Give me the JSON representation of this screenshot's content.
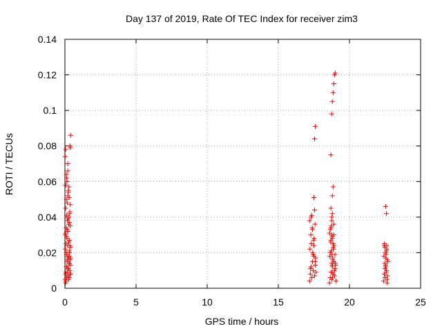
{
  "chart_data": {
    "type": "scatter",
    "title": "Day 137 of 2019, Rate Of TEC Index for receiver zim3",
    "xlabel": "GPS time / hours",
    "ylabel": "ROTI / TECUs",
    "xlim": [
      0,
      25
    ],
    "ylim": [
      0,
      0.14
    ],
    "xticks": [
      0,
      5,
      10,
      15,
      20,
      25
    ],
    "xtick_labels": [
      "0",
      "5",
      "10",
      "15",
      "20",
      "25"
    ],
    "yticks": [
      0,
      0.02,
      0.04,
      0.06,
      0.08,
      0.1,
      0.12,
      0.14
    ],
    "ytick_labels": [
      "0",
      "0.02",
      "0.04",
      "0.06",
      "0.08",
      "0.1",
      "0.12",
      "0.14"
    ],
    "grid": true,
    "marker": "+",
    "color": "#ff0000",
    "series": [
      {
        "name": "ROTI",
        "x": [
          0.02,
          0.05,
          0.08,
          0.1,
          0.12,
          0.15,
          0.18,
          0.2,
          0.22,
          0.25,
          0.28,
          0.3,
          0.32,
          0.35,
          0.38,
          0.4,
          0.03,
          0.07,
          0.11,
          0.14,
          0.19,
          0.23,
          0.27,
          0.31,
          0.36,
          0.39,
          0.04,
          0.09,
          0.13,
          0.17,
          0.21,
          0.26,
          0.29,
          0.33,
          0.37,
          0.06,
          0.1,
          0.16,
          0.24,
          0.34,
          0.06,
          0.12,
          0.2,
          0.28,
          0.38,
          0.05,
          0.09,
          0.14,
          0.18,
          0.22,
          0.27,
          0.32,
          0.36,
          0.4,
          0.1,
          0.15,
          0.2,
          0.25,
          0.3,
          0.35,
          0.12,
          0.22,
          0.33,
          0.05,
          0.15,
          0.25,
          0.35,
          0.1,
          0.3,
          0.02,
          0.05,
          0.2,
          0.38,
          0.35,
          0.4,
          0.36,
          17.2,
          17.25,
          17.3,
          17.35,
          17.4,
          17.45,
          17.5,
          17.55,
          17.6,
          17.65,
          17.22,
          17.32,
          17.42,
          17.52,
          17.62,
          17.28,
          17.38,
          17.48,
          17.58,
          17.2,
          17.3,
          17.4,
          17.5,
          17.6,
          17.25,
          17.45,
          17.35,
          17.55,
          17.5,
          17.55,
          17.6,
          18.6,
          18.65,
          18.7,
          18.75,
          18.8,
          18.85,
          18.9,
          18.95,
          19.0,
          19.05,
          18.62,
          18.72,
          18.82,
          18.92,
          19.02,
          18.68,
          18.78,
          18.88,
          18.98,
          18.6,
          18.7,
          18.8,
          18.9,
          19.0,
          18.65,
          18.75,
          18.85,
          18.95,
          18.7,
          18.75,
          18.8,
          18.85,
          18.9,
          18.7,
          18.75,
          18.8,
          18.85,
          18.9,
          18.95,
          19.0,
          18.65,
          18.7,
          18.72,
          18.75,
          18.78,
          18.8,
          18.82,
          18.85,
          18.8,
          18.75,
          18.78,
          18.8,
          22.4,
          22.45,
          22.5,
          22.55,
          22.6,
          22.65,
          22.7,
          22.42,
          22.48,
          22.52,
          22.58,
          22.62,
          22.68,
          22.44,
          22.5,
          22.56,
          22.64,
          22.46,
          22.54,
          22.6,
          22.66,
          22.5,
          22.58,
          22.62,
          22.55,
          22.6
        ],
        "y": [
          0.005,
          0.008,
          0.004,
          0.012,
          0.006,
          0.015,
          0.009,
          0.018,
          0.007,
          0.011,
          0.014,
          0.006,
          0.02,
          0.01,
          0.013,
          0.008,
          0.022,
          0.025,
          0.019,
          0.028,
          0.024,
          0.017,
          0.026,
          0.021,
          0.016,
          0.023,
          0.03,
          0.034,
          0.029,
          0.038,
          0.032,
          0.036,
          0.04,
          0.027,
          0.035,
          0.045,
          0.05,
          0.048,
          0.055,
          0.042,
          0.058,
          0.062,
          0.052,
          0.057,
          0.047,
          0.003,
          0.009,
          0.012,
          0.016,
          0.011,
          0.005,
          0.014,
          0.008,
          0.017,
          0.064,
          0.06,
          0.066,
          0.054,
          0.051,
          0.043,
          0.041,
          0.039,
          0.037,
          0.031,
          0.033,
          0.026,
          0.024,
          0.02,
          0.018,
          0.074,
          0.078,
          0.07,
          0.079,
          0.08,
          0.086,
          0.08,
          0.004,
          0.008,
          0.012,
          0.006,
          0.015,
          0.01,
          0.018,
          0.007,
          0.013,
          0.009,
          0.022,
          0.025,
          0.02,
          0.028,
          0.017,
          0.03,
          0.034,
          0.027,
          0.036,
          0.038,
          0.04,
          0.033,
          0.024,
          0.015,
          0.011,
          0.019,
          0.041,
          0.044,
          0.051,
          0.084,
          0.091,
          0.003,
          0.006,
          0.009,
          0.005,
          0.012,
          0.008,
          0.015,
          0.007,
          0.011,
          0.004,
          0.018,
          0.021,
          0.016,
          0.024,
          0.013,
          0.026,
          0.029,
          0.022,
          0.019,
          0.031,
          0.034,
          0.028,
          0.036,
          0.014,
          0.033,
          0.038,
          0.025,
          0.01,
          0.045,
          0.04,
          0.052,
          0.057,
          0.03,
          0.075,
          0.098,
          0.105,
          0.11,
          0.115,
          0.12,
          0.121,
          0.02,
          0.027,
          0.035,
          0.014,
          0.009,
          0.042,
          0.017,
          0.023,
          0.006,
          0.03,
          0.019,
          0.013,
          0.004,
          0.008,
          0.006,
          0.012,
          0.01,
          0.005,
          0.015,
          0.018,
          0.014,
          0.02,
          0.009,
          0.022,
          0.007,
          0.024,
          0.011,
          0.017,
          0.003,
          0.025,
          0.013,
          0.021,
          0.016,
          0.023,
          0.019,
          0.024,
          0.046,
          0.042
        ]
      }
    ]
  }
}
